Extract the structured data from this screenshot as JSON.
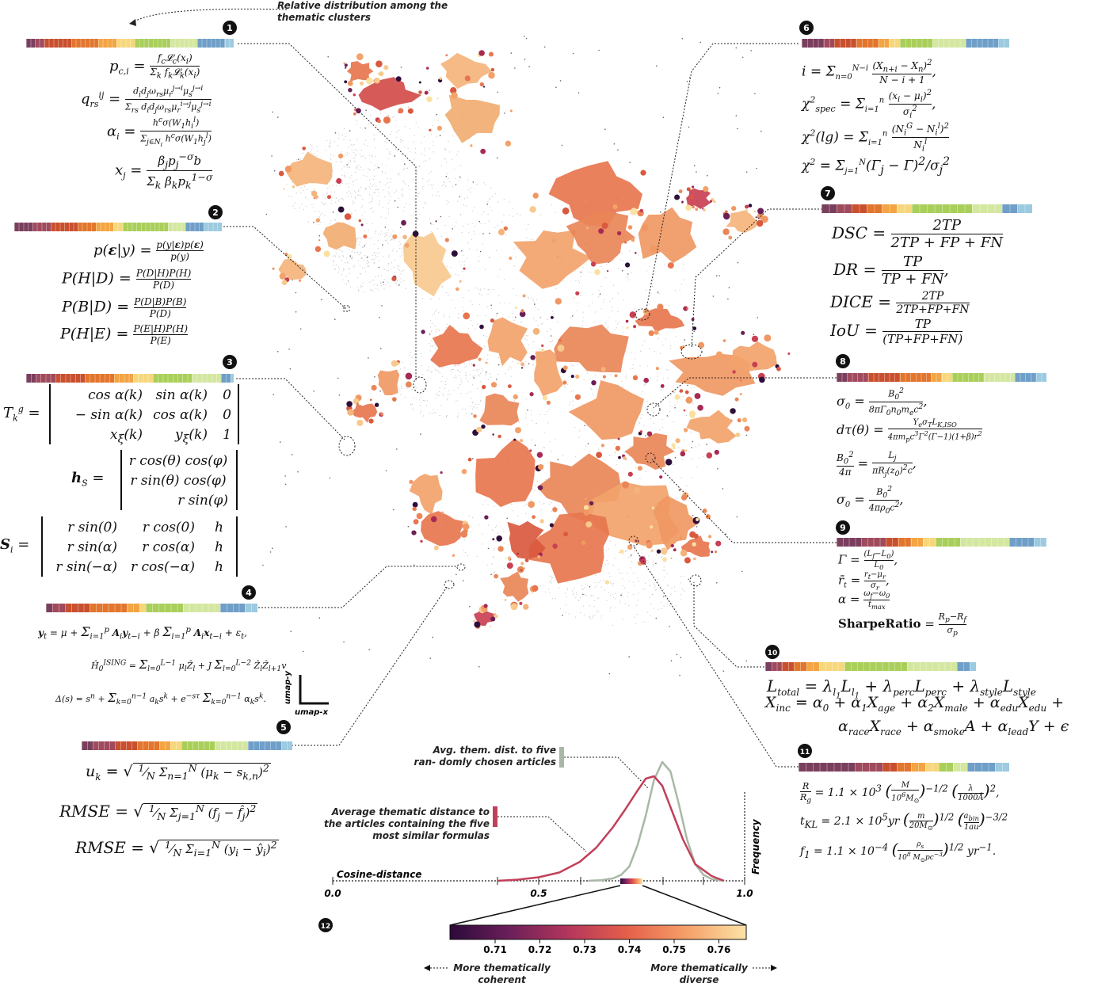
{
  "top_caption": "Relative distribution among the thematic clusters",
  "umap_axes": {
    "x_label": "umap-x",
    "y_label": "umap-y"
  },
  "colors": {
    "c1": "#7b3f5e",
    "c2": "#a04a5e",
    "c3": "#c9502e",
    "c4": "#e2762d",
    "c5": "#f3a443",
    "c6": "#f6d77c",
    "c7": "#a9cf5a",
    "c8": "#d4e7a0",
    "c9": "#6f9fc8",
    "c10": "#9ccae0"
  },
  "clusters": [
    {
      "number": "1",
      "formulas": [
        "p_{c,i} = f_c L_c(x_i) / Σ_k f_k L_k(x_i)",
        "q_rs^{ij} = d_i d_j ω_rs μ_r^{j→i} μ_s^{j→i} / Σ_rs d_i d_j ω_rs μ_r^{i→j} μ_s^{j→i}",
        "α_i = h^c σ(W_1 h_i^l) / Σ_{j∈N_i} h^c σ(W_1 h_j^l)",
        "x_j = β_j p_j^{−σ} b / Σ_k β_k p_k^{1−σ}"
      ]
    },
    {
      "number": "2",
      "formulas": [
        "p(ε|y) = p(y|ε)p(ε) / p(y)",
        "P(H|D) = P(D|H)P(H) / P(D)",
        "P(B|D) = P(D|B)P(B) / P(D)",
        "P(H|E) = P(E|H)P(H) / P(E)"
      ]
    },
    {
      "number": "3",
      "formulas": [
        "T_k^g = [cos α(k), sin α(k), 0; −sin α(k), cos α(k), 0; x_ξ(k), y_ξ(k), 1]",
        "h_S = [r cos(θ) cos(φ); r sin(θ) cos(φ); r sin(φ)]",
        "S_i = [r sin(0), r cos(0), h; r sin(α), r cos(α), h; r sin(−α), r cos(−α), h]"
      ]
    },
    {
      "number": "4",
      "formulas": [
        "y_t = μ + Σ_{i=1}^{p} A_i y_{t−i} + β Σ_{i=1}^{p} A_i x_{t−i} + ε_t,",
        "Ĥ_0^ISING = Σ_{l=0}^{L−1} μ_l Ẑ_l + J Σ_{l=0}^{L−2} Ẑ_l Ẑ_{l+1} v",
        "Δ(s) = s^n + Σ_{k=0}^{n−1} a_k s^k + e^{−sτ} Σ_{k=0}^{n−1} α_k s^k."
      ]
    },
    {
      "number": "5",
      "formulas": [
        "u_k = √( 1/N Σ_{n=1}^{N} (μ_k − s_{k,n})² )",
        "RMSE = √( 1/N Σ_{j=1}^{N} (f_j − f̂_j)² )",
        "RMSE = √( 1/N Σ_{i=1}^{N} (y_i − ŷ_i)² )"
      ]
    },
    {
      "number": "6",
      "formulas": [
        "i = Σ_{n=0}^{N−i} (X_{n+i} − X_n)² / (N − i + 1),",
        "χ²_spec = Σ_{i=1}^{n} (x_i − μ_i)² / σ_i²,",
        "χ²(lg) = Σ_{i=1}^{n} (N_i^G − N_i^l)² / N_i^l",
        "χ² = Σ_{j=1}^{N} (Γ_j − Γ)² / σ_j²"
      ]
    },
    {
      "number": "7",
      "formulas": [
        "DSC = 2TP / (2TP + FP + FN)",
        "DR = TP / (TP + FN),",
        "DICE = 2TP / (2TP+FP+FN)",
        "IoU = TP / (TP+FP+FN)"
      ]
    },
    {
      "number": "8",
      "formulas": [
        "σ_0 = B_0² / (8πΓ_0 n_0 m_e c²),",
        "dτ(θ) = Y_e σ_T L_K,ISO / (4π m_p c³ Γ²(Γ−1)(1+β) r²)",
        "B_0²/4π = L_j / (π R_j(z_0)² c),",
        "σ_0 = B_0² / (4π ρ_0 c²),"
      ]
    },
    {
      "number": "9",
      "formulas": [
        "Γ = (L_f − L_0) / L_0,",
        "r̄_t = (r_t − μ_r) / σ_r,",
        "α = (ω_f − ω_0) / t_max",
        "SharpeRatio = (R_p − R_f) / σ_p"
      ]
    },
    {
      "number": "10",
      "formulas": [
        "L_total = λ_l1 L_l1 + λ_perc L_perc + λ_style L_style",
        "X_inc = α_0 + α_1 X_age + α_2 X_male + α_edu X_edu +",
        "α_race X_race + α_smoke A + α_lead Y + ε"
      ]
    },
    {
      "number": "11",
      "formulas": [
        "R/R_g = 1.1 × 10³ (M / 10⁶ M_⊙)^{−1/2} (λ / 1000Å)²,",
        "t_KL = 2.1 × 10⁵ yr (m / 20 M_⊙)^{1/2} (a_bin / 1au)^{−3/2}",
        "f_1 = 1.1 × 10⁻⁴ (ρ_s / 10⁸ M_⊙ pc⁻³)^{1/2} yr⁻¹."
      ]
    }
  ],
  "distribution_panel": {
    "legend_gray": "Avg. them. dist. to five ran- domly chosen articles",
    "legend_red": "Average thematic distance to the articles containing the five most similar formulas",
    "x_axis_label": "Cosine-distance",
    "y_axis_label": "Frequency",
    "x_ticks": [
      "0.0",
      "0.5",
      "1.0"
    ],
    "panel_number": "12"
  },
  "chart_data": {
    "type": "line",
    "xlabel": "Cosine-distance",
    "ylabel": "Frequency",
    "xlim": [
      0.0,
      1.0
    ],
    "series": [
      {
        "name": "Avg. them. dist. to five ran- domly chosen articles",
        "color": "#a9b8a6",
        "x": [
          0.62,
          0.65,
          0.68,
          0.7,
          0.72,
          0.74,
          0.76,
          0.78,
          0.8,
          0.82,
          0.84,
          0.86,
          0.88,
          0.9,
          0.92,
          0.95
        ],
        "y": [
          0.0,
          0.005,
          0.02,
          0.05,
          0.12,
          0.3,
          0.55,
          0.85,
          1.0,
          0.92,
          0.65,
          0.35,
          0.14,
          0.05,
          0.015,
          0.0
        ]
      },
      {
        "name": "Average thematic distance to the articles containing the five most similar formulas",
        "color": "#c2405a",
        "x": [
          0.4,
          0.45,
          0.5,
          0.55,
          0.6,
          0.64,
          0.68,
          0.71,
          0.74,
          0.76,
          0.78,
          0.8,
          0.82,
          0.85,
          0.88,
          0.92,
          0.95
        ],
        "y": [
          0.0,
          0.01,
          0.03,
          0.07,
          0.16,
          0.28,
          0.45,
          0.6,
          0.76,
          0.86,
          0.88,
          0.8,
          0.62,
          0.35,
          0.14,
          0.04,
          0.0
        ]
      }
    ]
  },
  "colorbar": {
    "ticks": [
      "0.71",
      "0.72",
      "0.73",
      "0.74",
      "0.75",
      "0.76"
    ],
    "left_label": "More thematically coherent",
    "right_label": "More thematically diverse"
  }
}
